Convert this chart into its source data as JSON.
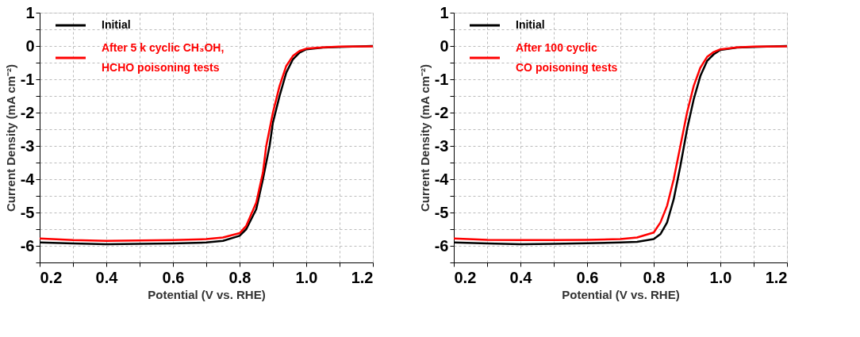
{
  "chart_data": [
    {
      "type": "line",
      "xlabel": "Potential (V vs. RHE)",
      "ylabel": "Current Density (mA cm⁻²)",
      "xlim": [
        0.2,
        1.2
      ],
      "ylim": [
        -6.5,
        1
      ],
      "xticks": [
        0.2,
        {
          "value": 0.3,
          "label": null
        },
        0.4,
        {
          "value": 0.5,
          "label": null
        },
        0.6,
        {
          "value": 0.7,
          "label": null
        },
        0.8,
        {
          "value": 0.9,
          "label": null
        },
        {
          "value": 1.0,
          "label": "1.0"
        },
        {
          "value": 1.1,
          "label": null
        },
        1.2
      ],
      "yticks": [
        {
          "value": -6.5,
          "label": null
        },
        -6,
        {
          "value": -5.5,
          "label": null
        },
        -5,
        {
          "value": -4.5,
          "label": null
        },
        -4,
        {
          "value": -3.5,
          "label": null
        },
        -3,
        {
          "value": -2.5,
          "label": null
        },
        -2,
        {
          "value": -1.5,
          "label": null
        },
        -1,
        {
          "value": -0.5,
          "label": null
        },
        0,
        {
          "value": 0.5,
          "label": null
        },
        1
      ],
      "grid": true,
      "legend": "top left",
      "line_style": "solid",
      "series": [
        {
          "name": "Initial",
          "color": "#000000",
          "x": [
            0.2,
            0.3,
            0.4,
            0.5,
            0.6,
            0.7,
            0.75,
            0.8,
            0.82,
            0.85,
            0.87,
            0.89,
            0.9,
            0.92,
            0.94,
            0.96,
            0.98,
            1.0,
            1.05,
            1.1,
            1.2
          ],
          "values": [
            -5.9,
            -5.93,
            -5.95,
            -5.94,
            -5.93,
            -5.9,
            -5.85,
            -5.7,
            -5.5,
            -4.9,
            -4.0,
            -3.0,
            -2.3,
            -1.5,
            -0.8,
            -0.4,
            -0.2,
            -0.1,
            -0.05,
            -0.03,
            0
          ]
        },
        {
          "name": "After 5 k cyclic CH₃OH,\nHCHO poisoning tests",
          "color": "#ff0000",
          "x": [
            0.2,
            0.3,
            0.4,
            0.5,
            0.6,
            0.7,
            0.75,
            0.8,
            0.82,
            0.85,
            0.87,
            0.88,
            0.9,
            0.92,
            0.94,
            0.96,
            0.98,
            1.0,
            1.05,
            1.1,
            1.2
          ],
          "values": [
            -5.78,
            -5.83,
            -5.85,
            -5.84,
            -5.83,
            -5.8,
            -5.75,
            -5.62,
            -5.4,
            -4.7,
            -3.8,
            -3.0,
            -2.0,
            -1.2,
            -0.6,
            -0.3,
            -0.15,
            -0.08,
            -0.04,
            -0.02,
            -0.01
          ]
        }
      ]
    },
    {
      "type": "line",
      "xlabel": "Potential (V vs. RHE)",
      "ylabel": "Current Density (mA cm⁻²)",
      "xlim": [
        0.2,
        1.2
      ],
      "ylim": [
        -6.5,
        1
      ],
      "xticks": [
        0.2,
        {
          "value": 0.3,
          "label": null
        },
        0.4,
        {
          "value": 0.5,
          "label": null
        },
        0.6,
        {
          "value": 0.7,
          "label": null
        },
        0.8,
        {
          "value": 0.9,
          "label": null
        },
        {
          "value": 1.0,
          "label": "1.0"
        },
        {
          "value": 1.1,
          "label": null
        },
        1.2
      ],
      "yticks": [
        {
          "value": -6.5,
          "label": null
        },
        -6,
        {
          "value": -5.5,
          "label": null
        },
        -5,
        {
          "value": -4.5,
          "label": null
        },
        -4,
        {
          "value": -3.5,
          "label": null
        },
        -3,
        {
          "value": -2.5,
          "label": null
        },
        -2,
        {
          "value": -1.5,
          "label": null
        },
        -1,
        {
          "value": -0.5,
          "label": null
        },
        0,
        {
          "value": 0.5,
          "label": null
        },
        1
      ],
      "grid": true,
      "legend": "top left",
      "line_style": "solid",
      "series": [
        {
          "name": "Initial",
          "color": "#000000",
          "x": [
            0.2,
            0.3,
            0.4,
            0.5,
            0.6,
            0.7,
            0.75,
            0.8,
            0.82,
            0.84,
            0.86,
            0.88,
            0.9,
            0.92,
            0.94,
            0.96,
            0.98,
            1.0,
            1.05,
            1.1,
            1.2
          ],
          "values": [
            -5.9,
            -5.93,
            -5.95,
            -5.94,
            -5.92,
            -5.9,
            -5.88,
            -5.8,
            -5.65,
            -5.3,
            -4.6,
            -3.6,
            -2.5,
            -1.6,
            -0.9,
            -0.45,
            -0.25,
            -0.12,
            -0.05,
            -0.03,
            0
          ]
        },
        {
          "name": "After 100 cyclic\nCO poisoning tests",
          "color": "#ff0000",
          "x": [
            0.2,
            0.3,
            0.4,
            0.5,
            0.6,
            0.7,
            0.75,
            0.8,
            0.82,
            0.84,
            0.86,
            0.88,
            0.9,
            0.92,
            0.94,
            0.96,
            0.98,
            1.0,
            1.05,
            1.1,
            1.2
          ],
          "values": [
            -5.78,
            -5.82,
            -5.83,
            -5.83,
            -5.82,
            -5.8,
            -5.75,
            -5.6,
            -5.3,
            -4.8,
            -4.0,
            -3.0,
            -2.0,
            -1.2,
            -0.65,
            -0.33,
            -0.18,
            -0.1,
            -0.04,
            -0.02,
            -0.01
          ]
        }
      ]
    }
  ]
}
